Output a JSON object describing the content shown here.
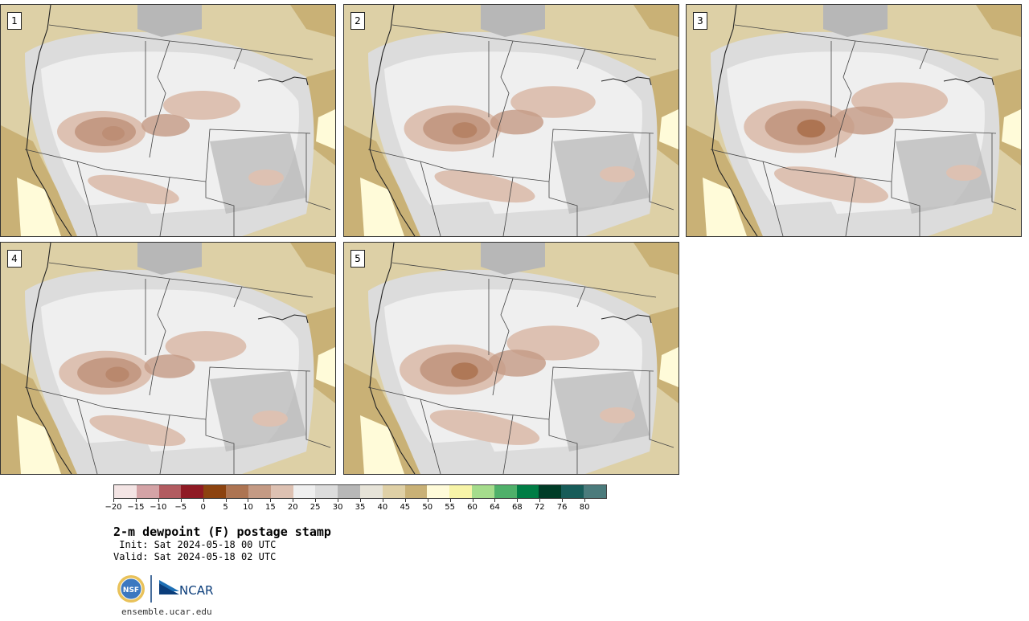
{
  "panels": [
    {
      "label": "1"
    },
    {
      "label": "2"
    },
    {
      "label": "3"
    },
    {
      "label": "4"
    },
    {
      "label": "5"
    }
  ],
  "colorbar": {
    "colors": [
      "#f3e4e4",
      "#d4a3a6",
      "#b25b60",
      "#8f1a24",
      "#8c4310",
      "#ad7452",
      "#c49a84",
      "#ddc1b2",
      "#efefef",
      "#dcdcdc",
      "#b7b7b7",
      "#e6e3d8",
      "#dfd0a6",
      "#c9b176",
      "#fffbd9",
      "#f7f4a8",
      "#a5dc8c",
      "#4fb06a",
      "#007d45",
      "#003c27",
      "#175c59",
      "#4b7b7c"
    ],
    "tick_labels": [
      "−20",
      "−15",
      "−10",
      "−5",
      "0",
      "5",
      "10",
      "15",
      "20",
      "25",
      "30",
      "35",
      "40",
      "45",
      "50",
      "55",
      "60",
      "64",
      "68",
      "72",
      "76",
      "80"
    ]
  },
  "title": "2-m dewpoint (F) postage stamp",
  "init_text": " Init: Sat 2024-05-18 00 UTC",
  "valid_text": "Valid: Sat 2024-05-18 02 UTC",
  "logo": {
    "nsf_text": "NSF",
    "ncar_text": "NCAR"
  },
  "site_url": "ensemble.ucar.edu",
  "palette": {
    "ocean_tan": "#ddd0a6",
    "dark_tan": "#c9b176",
    "light_gray": "#efefef",
    "mid_gray": "#dcdcdc",
    "dark_gray": "#b7b7b7",
    "dry_light": "#ddc1b2",
    "dry_mid": "#c49a84",
    "dry_dark": "#ad7452",
    "moist_yellow": "#fffbd9"
  }
}
